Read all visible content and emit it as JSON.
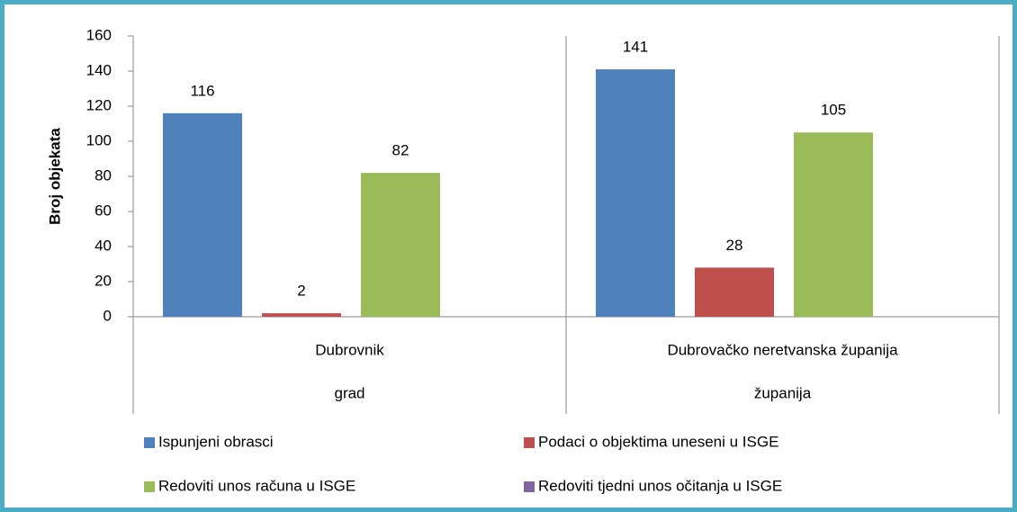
{
  "chart_data": {
    "type": "bar",
    "y_axis_label": "Broj objekata",
    "categories": [
      "Dubrovnik",
      "Dubrovačko neretvanska županija"
    ],
    "category_groups": [
      "grad",
      "županija"
    ],
    "series": [
      {
        "name": "Ispunjeni obrasci",
        "color": "#4f81bd",
        "values": [
          116,
          141
        ]
      },
      {
        "name": "Podaci o objektima uneseni u ISGE",
        "color": "#c0504d",
        "values": [
          2,
          28
        ]
      },
      {
        "name": "Redoviti unos računa u ISGE",
        "color": "#9bbb59",
        "values": [
          82,
          105
        ]
      },
      {
        "name": "Redoviti tjedni unos očitanja u ISGE",
        "color": "#8064a2",
        "values": [
          null,
          null
        ]
      }
    ],
    "ylim": [
      0,
      160
    ],
    "yticks": [
      0,
      20,
      40,
      60,
      80,
      100,
      120,
      140,
      160
    ],
    "grid": false,
    "legend": "bottom"
  }
}
